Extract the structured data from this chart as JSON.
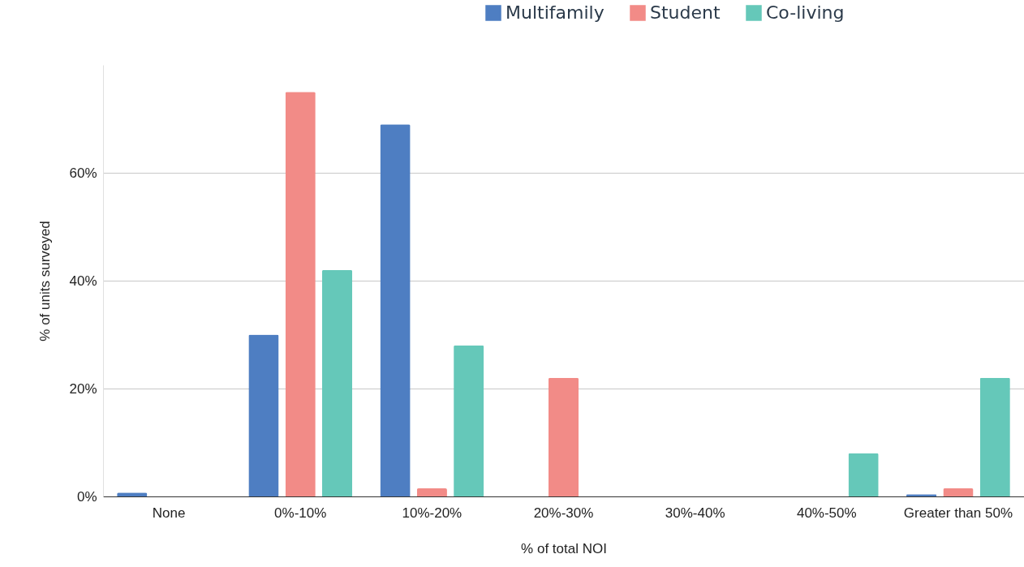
{
  "chart_data": {
    "type": "bar",
    "xlabel": "% of total NOI",
    "ylabel": "% of units surveyed",
    "categories": [
      "None",
      "0%-10%",
      "10%-20%",
      "20%-30%",
      "30%-40%",
      "40%-50%",
      "Greater than 50%"
    ],
    "series": [
      {
        "name": "Multifamily",
        "color": "#4e7ec2",
        "values": [
          0.7,
          30,
          69,
          0,
          0,
          0,
          0.4
        ]
      },
      {
        "name": "Student",
        "color": "#f28b87",
        "values": [
          0,
          75,
          1.5,
          22,
          0,
          0,
          1.5
        ]
      },
      {
        "name": "Co-living",
        "color": "#65c8b9",
        "values": [
          0,
          42,
          28,
          0,
          0,
          8,
          22
        ]
      }
    ],
    "ylim": [
      0,
      80
    ],
    "yticks": [
      {
        "value": 0,
        "label": "0%"
      },
      {
        "value": 20,
        "label": "20%"
      },
      {
        "value": 40,
        "label": "40%"
      },
      {
        "value": 60,
        "label": "60%"
      }
    ],
    "grid": "y",
    "legend": "top right"
  }
}
